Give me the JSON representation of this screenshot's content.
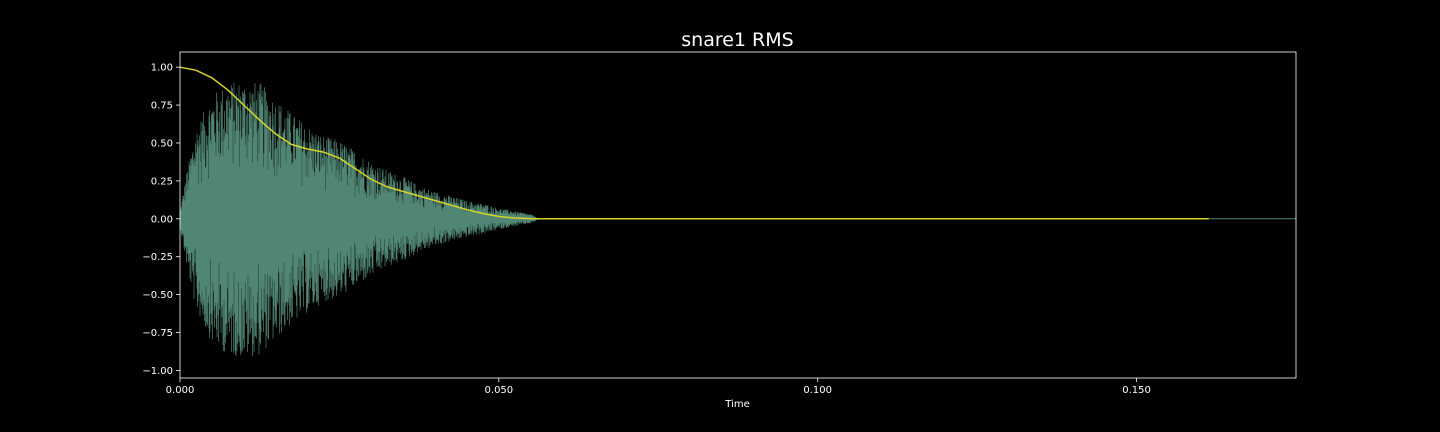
{
  "chart_data": {
    "type": "line",
    "title": "snare1 RMS",
    "xlabel": "Time",
    "ylabel": "",
    "xlim": [
      0.0,
      0.175
    ],
    "ylim": [
      -1.05,
      1.1
    ],
    "x_ticks": [
      0.0,
      0.05,
      0.1,
      0.15
    ],
    "x_tick_labels": [
      "0.000",
      "0.050",
      "0.100",
      "0.150"
    ],
    "y_ticks": [
      1.0,
      0.75,
      0.5,
      0.25,
      0.0,
      -0.25,
      -0.5,
      -0.75,
      -1.0
    ],
    "y_tick_labels": [
      "1.00",
      "0.75",
      "0.50",
      "0.25",
      "0.00",
      "−0.25",
      "−0.50",
      "−0.75",
      "−1.00"
    ],
    "grid": false,
    "series": [
      {
        "kind": "waveform",
        "color": "#5f9e8a",
        "envelope_t": [
          0.0,
          0.001,
          0.0025,
          0.005,
          0.0075,
          0.01,
          0.0125,
          0.015,
          0.0175,
          0.02,
          0.0225,
          0.025,
          0.0275,
          0.03,
          0.0325,
          0.035,
          0.0375,
          0.04,
          0.0425,
          0.045,
          0.0475,
          0.05,
          0.0525,
          0.055,
          0.0565,
          0.175
        ],
        "envelope_amp": [
          0.05,
          0.3,
          0.6,
          0.82,
          0.9,
          0.92,
          0.9,
          0.8,
          0.7,
          0.62,
          0.55,
          0.52,
          0.45,
          0.38,
          0.32,
          0.28,
          0.22,
          0.18,
          0.15,
          0.12,
          0.1,
          0.07,
          0.05,
          0.03,
          0.0,
          0.0
        ]
      },
      {
        "kind": "rms",
        "color": "#d4d42a",
        "x": [
          0.0,
          0.0025,
          0.005,
          0.0075,
          0.01,
          0.0125,
          0.015,
          0.0175,
          0.02,
          0.0225,
          0.025,
          0.0275,
          0.03,
          0.0325,
          0.035,
          0.0375,
          0.04,
          0.0425,
          0.045,
          0.0475,
          0.05,
          0.0525,
          0.055,
          0.0575,
          0.06,
          0.1613
        ],
        "y": [
          1.0,
          0.98,
          0.93,
          0.85,
          0.75,
          0.65,
          0.56,
          0.49,
          0.46,
          0.44,
          0.4,
          0.33,
          0.26,
          0.21,
          0.18,
          0.15,
          0.12,
          0.09,
          0.06,
          0.035,
          0.015,
          0.005,
          0.001,
          0.0,
          0.0,
          0.0
        ]
      }
    ]
  }
}
